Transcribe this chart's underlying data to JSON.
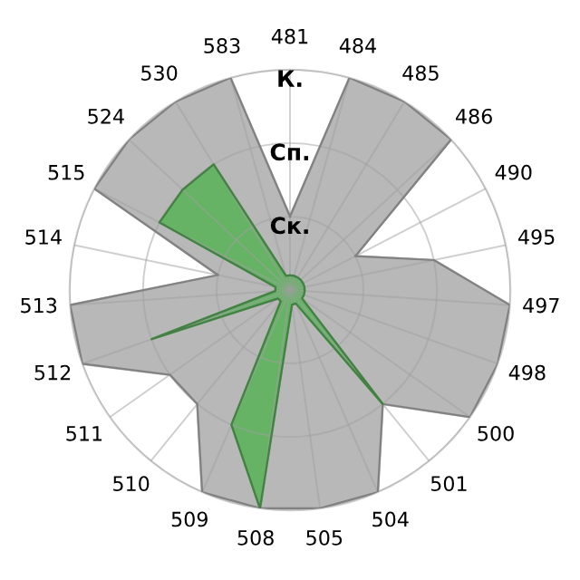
{
  "chart_data": {
    "type": "radar",
    "categories": [
      "481",
      "484",
      "485",
      "486",
      "490",
      "495",
      "497",
      "498",
      "500",
      "501",
      "504",
      "505",
      "508",
      "509",
      "510",
      "511",
      "512",
      "513",
      "514",
      "515",
      "524",
      "530",
      "583"
    ],
    "series": [
      {
        "color": "#b8b8b8",
        "values": [
          1,
          3,
          3,
          3,
          1,
          2,
          3,
          3,
          3,
          2,
          3,
          3,
          3,
          3,
          2,
          2,
          3,
          3,
          1,
          3,
          3,
          3,
          3
        ]
      },
      {
        "color": "#66b366",
        "values": [
          0.2,
          0.2,
          0.2,
          0.2,
          0.2,
          0.2,
          0.2,
          0.2,
          0.2,
          2,
          0.2,
          0.2,
          3,
          2,
          0.2,
          0.2,
          2,
          0.2,
          0.2,
          2,
          2,
          2,
          0.2
        ]
      }
    ],
    "ylim": [
      0,
      3
    ],
    "yticks": [
      {
        "value": 1,
        "label": "Ск."
      },
      {
        "value": 2,
        "label": "Сп."
      },
      {
        "value": 3,
        "label": "К."
      }
    ],
    "grid": true,
    "legend": false,
    "marker": "none"
  }
}
